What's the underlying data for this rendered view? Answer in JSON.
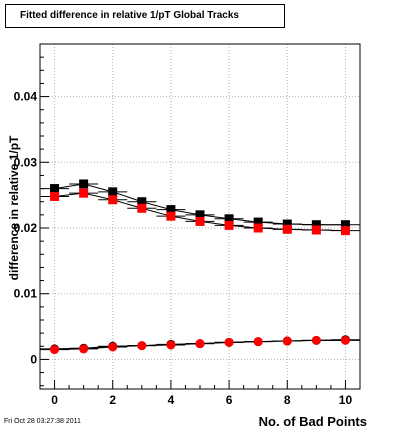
{
  "chart_data": {
    "type": "scatter",
    "title": "Fitted difference in relative 1/pT  Global Tracks",
    "xlabel": "No. of Bad Points",
    "ylabel": "difference in relative 1/pT",
    "xlim": [
      -0.5,
      10.5
    ],
    "ylim": [
      -0.0045,
      0.048
    ],
    "x_ticks": [
      "0",
      "2",
      "4",
      "6",
      "8",
      "10"
    ],
    "y_ticks": [
      "0",
      "0.01",
      "0.02",
      "0.03",
      "0.04"
    ],
    "grid": true,
    "legend": "none",
    "x": [
      0,
      1,
      2,
      3,
      4,
      5,
      6,
      7,
      8,
      9,
      10
    ],
    "series": [
      {
        "marker": "square",
        "color": "#000000",
        "values": [
          0.026,
          0.0267,
          0.0255,
          0.024,
          0.0228,
          0.022,
          0.0214,
          0.0209,
          0.0206,
          0.0205,
          0.0205
        ]
      },
      {
        "marker": "square",
        "color": "#ff0000",
        "values": [
          0.0248,
          0.0253,
          0.0243,
          0.023,
          0.0218,
          0.021,
          0.0204,
          0.02,
          0.0198,
          0.0197,
          0.0196
        ]
      },
      {
        "marker": "circle",
        "color": "#000000",
        "values": [
          0.0016,
          0.0017,
          0.002,
          0.0021,
          0.0023,
          0.0024,
          0.0026,
          0.0027,
          0.0028,
          0.0029,
          0.003
        ]
      },
      {
        "marker": "circle",
        "color": "#ff0000",
        "values": [
          0.0015,
          0.0016,
          0.0019,
          0.0021,
          0.0022,
          0.0024,
          0.0026,
          0.0027,
          0.0028,
          0.0029,
          0.0029
        ]
      }
    ]
  },
  "footer": {
    "date": "Fri Oct 28 03:27:38 2011"
  }
}
